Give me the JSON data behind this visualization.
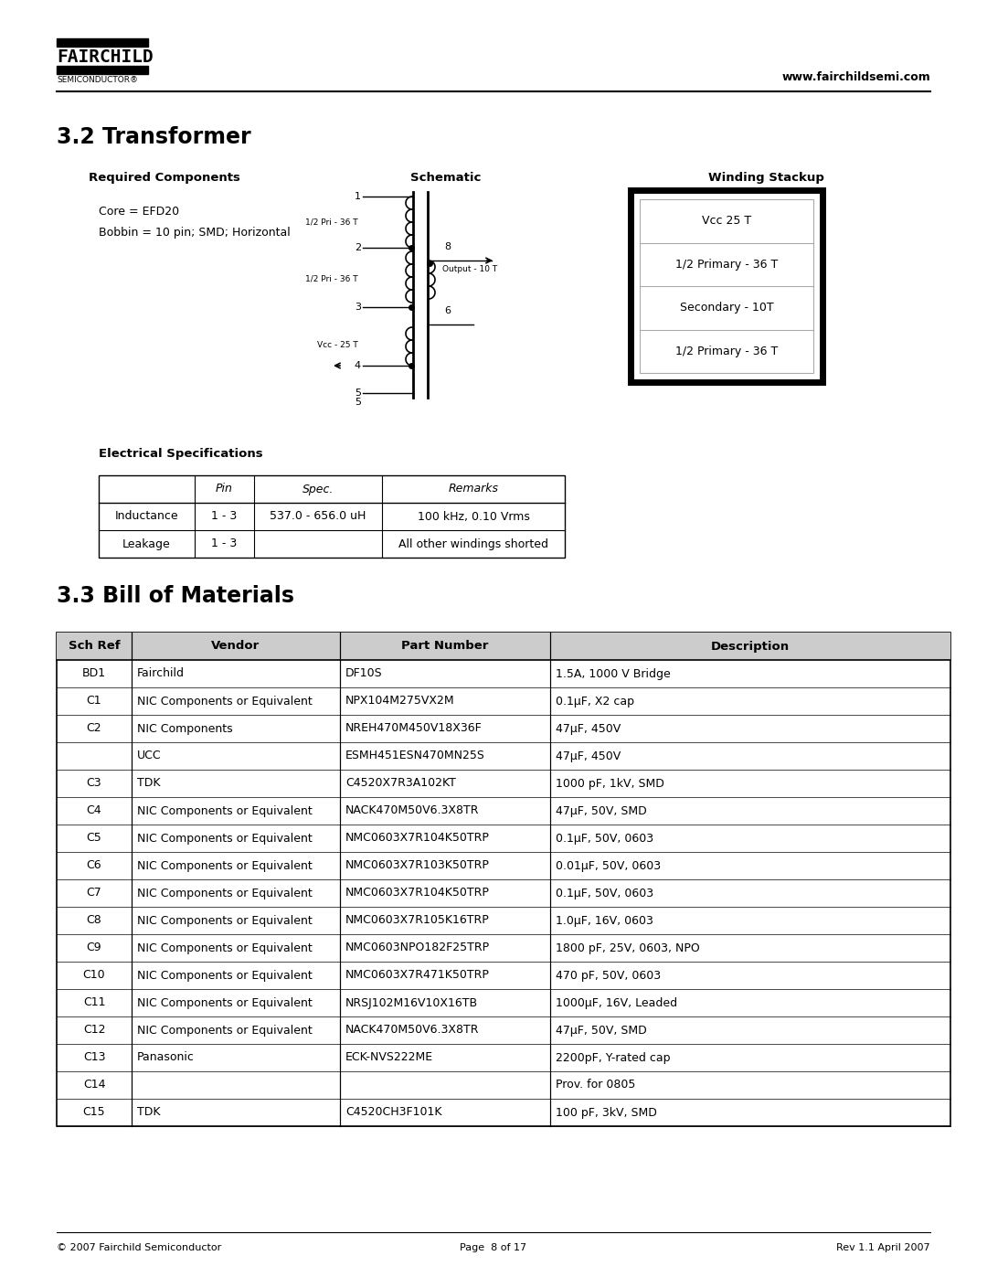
{
  "page_title": "3.2 Transformer",
  "section2_title": "3.3 Bill of Materials",
  "website": "www.fairchildsemi.com",
  "footer_left": "© 2007 Fairchild Semiconductor",
  "footer_center": "Page  8 of 17",
  "footer_right": "Rev 1.1 April 2007",
  "required_components_label": "Required Components",
  "schematic_label": "Schematic",
  "winding_stackup_label": "Winding Stackup",
  "core_text": "Core = EFD20",
  "bobbin_text": "Bobbin = 10 pin; SMD; Horizontal",
  "winding_layers": [
    "Vcc 25 T",
    "1/2 Primary - 36 T",
    "Secondary - 10T",
    "1/2 Primary - 36 T"
  ],
  "elec_spec_title": "Electrical Specifications",
  "elec_table_headers": [
    "",
    "Pin",
    "Spec.",
    "Remarks"
  ],
  "elec_table_rows": [
    [
      "Inductance",
      "1 - 3",
      "537.0 - 656.0 uH",
      "100 kHz, 0.10 Vrms"
    ],
    [
      "Leakage",
      "1 - 3",
      "",
      "All other windings shorted"
    ]
  ],
  "bom_headers": [
    "Sch Ref",
    "Vendor",
    "Part Number",
    "Description"
  ],
  "bom_rows": [
    [
      "BD1",
      "Fairchild",
      "DF10S",
      "1.5A, 1000 V Bridge"
    ],
    [
      "C1",
      "NIC Components or Equivalent",
      "NPX104M275VX2M",
      "0.1μF, X2 cap"
    ],
    [
      "C2",
      "NIC Components",
      "NREH470M450V18X36F",
      "47μF, 450V"
    ],
    [
      "",
      "UCC",
      "ESMH451ESN470MN25S",
      "47μF, 450V"
    ],
    [
      "C3",
      "TDK",
      "C4520X7R3A102KT",
      "1000 pF, 1kV, SMD"
    ],
    [
      "C4",
      "NIC Components or Equivalent",
      "NACK470M50V6.3X8TR",
      "47μF, 50V, SMD"
    ],
    [
      "C5",
      "NIC Components or Equivalent",
      "NMC0603X7R104K50TRP",
      "0.1μF, 50V, 0603"
    ],
    [
      "C6",
      "NIC Components or Equivalent",
      "NMC0603X7R103K50TRP",
      "0.01μF, 50V, 0603"
    ],
    [
      "C7",
      "NIC Components or Equivalent",
      "NMC0603X7R104K50TRP",
      "0.1μF, 50V, 0603"
    ],
    [
      "C8",
      "NIC Components or Equivalent",
      "NMC0603X7R105K16TRP",
      "1.0μF, 16V, 0603"
    ],
    [
      "C9",
      "NIC Components or Equivalent",
      "NMC0603NPO182F25TRP",
      "1800 pF, 25V, 0603, NPO"
    ],
    [
      "C10",
      "NIC Components or Equivalent",
      "NMC0603X7R471K50TRP",
      "470 pF, 50V, 0603"
    ],
    [
      "C11",
      "NIC Components or Equivalent",
      "NRSJ102M16V10X16TB",
      "1000μF, 16V, Leaded"
    ],
    [
      "C12",
      "NIC Components or Equivalent",
      "NACK470M50V6.3X8TR",
      "47μF, 50V, SMD"
    ],
    [
      "C13",
      "Panasonic",
      "ECK-NVS222ME",
      "2200pF, Y-rated cap"
    ],
    [
      "C14",
      "",
      "",
      "Prov. for 0805"
    ],
    [
      "C15",
      "TDK",
      "C4520CH3F101K",
      "100 pF, 3kV, SMD"
    ]
  ],
  "bg_color": "#ffffff",
  "text_color": "#000000"
}
